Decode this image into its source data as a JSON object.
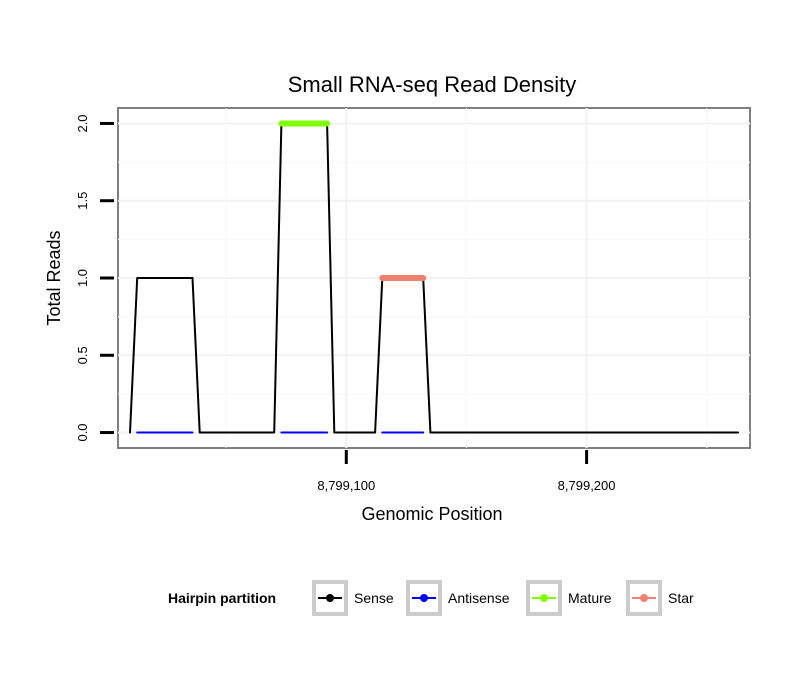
{
  "chart_data": {
    "type": "line",
    "title": "Small RNA-seq Read Density",
    "xlabel": "Genomic Position",
    "ylabel": "Total Reads",
    "xlim": [
      8799005,
      8799268
    ],
    "ylim": [
      -0.1,
      2.1
    ],
    "x_ticks": [
      {
        "value": 8799100,
        "label": "8,799,100"
      },
      {
        "value": 8799200,
        "label": "8,799,200"
      }
    ],
    "y_ticks": [
      {
        "value": 0.0,
        "label": "0.0"
      },
      {
        "value": 0.5,
        "label": "0.5"
      },
      {
        "value": 1.0,
        "label": "1.0"
      },
      {
        "value": 1.5,
        "label": "1.5"
      },
      {
        "value": 2.0,
        "label": "2.0"
      }
    ],
    "grid": true,
    "series": [
      {
        "name": "Sense",
        "color": "#000000",
        "x": [
          8799010,
          8799013,
          8799036,
          8799039,
          8799070,
          8799073,
          8799092,
          8799095,
          8799112,
          8799115,
          8799132,
          8799135,
          8799263
        ],
        "y": [
          0,
          1,
          1,
          0,
          0,
          2,
          2,
          0,
          0,
          1,
          1,
          0,
          0
        ]
      },
      {
        "name": "Antisense",
        "color": "#0000ff",
        "x": [
          8799013,
          8799036,
          8799073,
          8799092,
          8799115,
          8799132
        ],
        "y": [
          0,
          0,
          0,
          0,
          0,
          0
        ],
        "segments": [
          [
            0,
            1
          ],
          [
            2,
            3
          ],
          [
            4,
            5
          ]
        ]
      },
      {
        "name": "Mature",
        "color": "#7fff00",
        "x": [
          8799073,
          8799092
        ],
        "y": [
          2,
          2
        ]
      },
      {
        "name": "Star",
        "color": "#f08070",
        "x": [
          8799115,
          8799132
        ],
        "y": [
          1,
          1
        ]
      }
    ],
    "legend": {
      "title": "Hairpin partition",
      "placement": "bottom",
      "entries": [
        {
          "label": "Sense",
          "color": "#000000"
        },
        {
          "label": "Antisense",
          "color": "#0000ff"
        },
        {
          "label": "Mature",
          "color": "#7fff00"
        },
        {
          "label": "Star",
          "color": "#f08070"
        }
      ]
    }
  }
}
